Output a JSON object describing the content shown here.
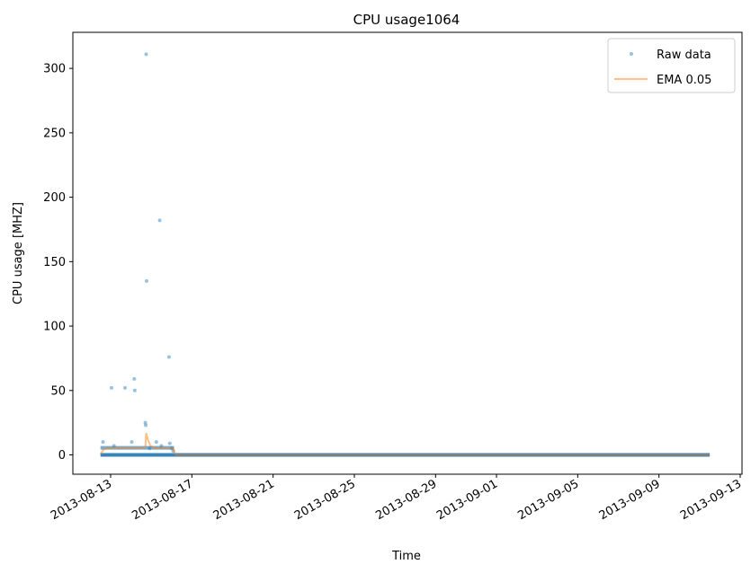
{
  "chart_data": {
    "type": "scatter",
    "title": "CPU usage1064",
    "xlabel": "Time",
    "ylabel": "CPU usage [MHZ]",
    "x_tick_labels": [
      "2013-08-13",
      "2013-08-17",
      "2013-08-21",
      "2013-08-25",
      "2013-08-29",
      "2013-09-01",
      "2013-09-05",
      "2013-09-09",
      "2013-09-13"
    ],
    "y_tick_labels": [
      "0",
      "50",
      "100",
      "150",
      "200",
      "250",
      "300"
    ],
    "ylim": [
      -15,
      328
    ],
    "legend": {
      "position": "upper right",
      "entries": [
        "Raw data",
        "EMA 0.05"
      ]
    },
    "colors": {
      "raw": "#1f77b4",
      "ema": "#ff7f0e"
    },
    "series": [
      {
        "name": "Raw data",
        "style": "points",
        "baseline_value": 0,
        "baseline_range": [
          "2013-08-12 12:00",
          "2013-09-11 12:00"
        ],
        "band_value": 5.5,
        "band_range": [
          "2013-08-12 12:00",
          "2013-08-16 03:00"
        ],
        "points": [
          {
            "x": "2013-08-12 15:00",
            "y": 10
          },
          {
            "x": "2013-08-13 01:00",
            "y": 52
          },
          {
            "x": "2013-08-13 04:00",
            "y": 7
          },
          {
            "x": "2013-08-13 17:00",
            "y": 52
          },
          {
            "x": "2013-08-14 01:00",
            "y": 10
          },
          {
            "x": "2013-08-14 04:00",
            "y": 59
          },
          {
            "x": "2013-08-14 04:30",
            "y": 50
          },
          {
            "x": "2013-08-14 18:00",
            "y": 311
          },
          {
            "x": "2013-08-14 17:00",
            "y": 25
          },
          {
            "x": "2013-08-14 17:30",
            "y": 23
          },
          {
            "x": "2013-08-14 18:30",
            "y": 135
          },
          {
            "x": "2013-08-14 22:00",
            "y": 5
          },
          {
            "x": "2013-08-15 06:00",
            "y": 10
          },
          {
            "x": "2013-08-15 10:00",
            "y": 182
          },
          {
            "x": "2013-08-15 12:00",
            "y": 7
          },
          {
            "x": "2013-08-15 21:00",
            "y": 76
          },
          {
            "x": "2013-08-15 22:00",
            "y": 9
          },
          {
            "x": "2013-08-16 00:00",
            "y": 5
          },
          {
            "x": "2013-08-16 02:00",
            "y": 3
          }
        ]
      },
      {
        "name": "EMA 0.05",
        "style": "line",
        "points": [
          {
            "x": "2013-08-12 12:00",
            "y": 0.5
          },
          {
            "x": "2013-08-12 16:00",
            "y": 4.5
          },
          {
            "x": "2013-08-13 00:00",
            "y": 5.5
          },
          {
            "x": "2013-08-14 12:00",
            "y": 5.5
          },
          {
            "x": "2013-08-14 17:00",
            "y": 6
          },
          {
            "x": "2013-08-14 18:00",
            "y": 17
          },
          {
            "x": "2013-08-14 20:00",
            "y": 12
          },
          {
            "x": "2013-08-14 23:00",
            "y": 7
          },
          {
            "x": "2013-08-15 04:00",
            "y": 5.5
          },
          {
            "x": "2013-08-16 02:00",
            "y": 5
          },
          {
            "x": "2013-08-16 04:00",
            "y": 1
          },
          {
            "x": "2013-08-16 06:00",
            "y": 0
          },
          {
            "x": "2013-09-11 12:00",
            "y": 0
          }
        ]
      }
    ]
  }
}
